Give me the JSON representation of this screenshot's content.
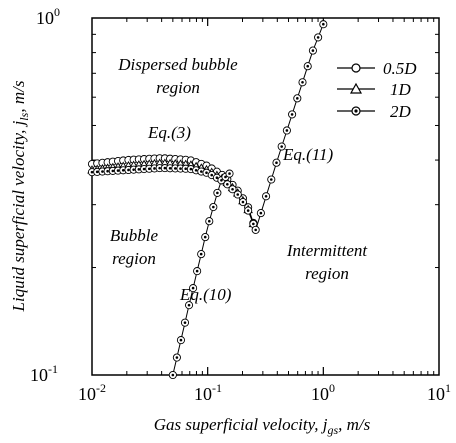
{
  "chart_data": {
    "type": "line",
    "xscale": "log",
    "yscale": "log",
    "xlim": [
      0.01,
      10
    ],
    "ylim": [
      0.1,
      1
    ],
    "grid": false,
    "legend_position": "top-right",
    "xlabel": {
      "pre": "Gas superficial velocity, ",
      "sym": "j",
      "sub": "gs",
      "post": ", m/s"
    },
    "ylabel": {
      "pre": "Liquid superficial velocity, ",
      "sym": "j",
      "sub": "ls",
      "post": ", m/s"
    },
    "xticks": [
      {
        "value": 0.01,
        "base": "10",
        "exp": "-2"
      },
      {
        "value": 0.1,
        "base": "10",
        "exp": "-1"
      },
      {
        "value": 1,
        "base": "10",
        "exp": "0"
      },
      {
        "value": 10,
        "base": "10",
        "exp": "1"
      }
    ],
    "yticks": [
      {
        "value": 0.1,
        "base": "10",
        "exp": "-1"
      },
      {
        "value": 1,
        "base": "10",
        "exp": "0"
      }
    ],
    "legend": [
      {
        "label": "0.5D",
        "marker": "circle"
      },
      {
        "label": "1D",
        "marker": "triangle"
      },
      {
        "label": "2D",
        "marker": "dotted-circle"
      }
    ],
    "annotations": {
      "dispersed_line1": "Dispersed bubble",
      "dispersed_line2": "region",
      "bubble_line1": "Bubble",
      "bubble_line2": "region",
      "intermittent_line1": "Intermittent",
      "intermittent_line2": "region",
      "eq3": "Eq.(3)",
      "eq10": "Eq.(10)",
      "eq11": "Eq.(11)"
    },
    "series": [
      {
        "name": "0.5D",
        "curve": "Eq.(3)",
        "x": [
          0.01,
          0.02,
          0.04,
          0.07,
          0.1,
          0.14,
          0.18,
          0.22,
          0.26
        ],
        "y": [
          0.39,
          0.4,
          0.405,
          0.4,
          0.385,
          0.36,
          0.33,
          0.3,
          0.255
        ]
      },
      {
        "name": "1D",
        "curve": "Eq.(3)",
        "x": [
          0.01,
          0.02,
          0.04,
          0.07,
          0.1,
          0.14,
          0.18,
          0.22,
          0.26
        ],
        "y": [
          0.375,
          0.385,
          0.392,
          0.388,
          0.375,
          0.352,
          0.325,
          0.295,
          0.255
        ]
      },
      {
        "name": "2D",
        "curve": "Eq.(3)",
        "x": [
          0.01,
          0.02,
          0.04,
          0.07,
          0.1,
          0.14,
          0.18,
          0.22,
          0.26
        ],
        "y": [
          0.37,
          0.375,
          0.38,
          0.378,
          0.368,
          0.348,
          0.322,
          0.293,
          0.255
        ]
      },
      {
        "name": "",
        "curve": "Eq.(10)",
        "x": [
          0.05,
          0.07,
          0.1,
          0.13,
          0.16
        ],
        "y": [
          0.1,
          0.16,
          0.26,
          0.35,
          0.37
        ]
      },
      {
        "name": "",
        "curve": "Eq.(11)",
        "x": [
          0.26,
          0.4,
          0.6,
          0.8,
          1.05
        ],
        "y": [
          0.255,
          0.4,
          0.6,
          0.8,
          1.0
        ]
      }
    ]
  }
}
